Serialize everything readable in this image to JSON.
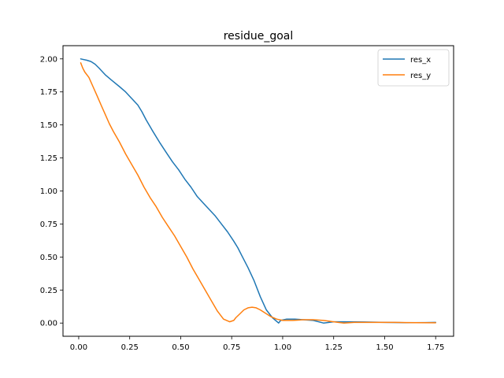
{
  "chart_data": {
    "type": "line",
    "title": "residue_goal",
    "xlabel": "",
    "ylabel": "",
    "xlim": [
      -0.077,
      1.838
    ],
    "ylim": [
      -0.1,
      2.1
    ],
    "xticks": [
      0.0,
      0.25,
      0.5,
      0.75,
      1.0,
      1.25,
      1.5,
      1.75
    ],
    "xtick_labels": [
      "0.00",
      "0.25",
      "0.50",
      "0.75",
      "1.00",
      "1.25",
      "1.50",
      "1.75"
    ],
    "yticks": [
      0.0,
      0.25,
      0.5,
      0.75,
      1.0,
      1.25,
      1.5,
      1.75,
      2.0
    ],
    "ytick_labels": [
      "0.00",
      "0.25",
      "0.50",
      "0.75",
      "1.00",
      "1.25",
      "1.50",
      "1.75",
      "2.00"
    ],
    "grid": false,
    "legend_position": "top-right",
    "series": [
      {
        "name": "res_x",
        "color": "#1f77b4",
        "x": [
          0.01,
          0.04,
          0.06,
          0.08,
          0.1,
          0.13,
          0.16,
          0.2,
          0.23,
          0.26,
          0.29,
          0.31,
          0.33,
          0.36,
          0.4,
          0.43,
          0.46,
          0.49,
          0.52,
          0.55,
          0.58,
          0.61,
          0.64,
          0.67,
          0.7,
          0.73,
          0.76,
          0.78,
          0.8,
          0.83,
          0.86,
          0.89,
          0.92,
          0.95,
          0.98,
          0.99,
          1.02,
          1.06,
          1.1,
          1.15,
          1.2,
          1.25,
          1.3,
          1.4,
          1.5,
          1.6,
          1.7,
          1.75
        ],
        "y": [
          2.0,
          1.99,
          1.98,
          1.96,
          1.93,
          1.88,
          1.84,
          1.79,
          1.75,
          1.7,
          1.65,
          1.6,
          1.54,
          1.46,
          1.36,
          1.29,
          1.22,
          1.16,
          1.09,
          1.03,
          0.96,
          0.91,
          0.86,
          0.81,
          0.75,
          0.69,
          0.62,
          0.57,
          0.51,
          0.42,
          0.32,
          0.2,
          0.1,
          0.04,
          0.0,
          0.02,
          0.03,
          0.03,
          0.025,
          0.02,
          0.0,
          0.01,
          0.01,
          0.008,
          0.005,
          0.003,
          0.004,
          0.005
        ]
      },
      {
        "name": "res_y",
        "color": "#ff7f0e",
        "x": [
          0.01,
          0.02,
          0.03,
          0.05,
          0.07,
          0.09,
          0.11,
          0.13,
          0.15,
          0.17,
          0.2,
          0.23,
          0.26,
          0.29,
          0.32,
          0.35,
          0.38,
          0.41,
          0.44,
          0.47,
          0.5,
          0.53,
          0.56,
          0.59,
          0.62,
          0.65,
          0.68,
          0.71,
          0.74,
          0.76,
          0.77,
          0.79,
          0.81,
          0.83,
          0.85,
          0.87,
          0.89,
          0.91,
          0.94,
          0.97,
          1.0,
          1.05,
          1.1,
          1.15,
          1.2,
          1.25,
          1.3,
          1.35,
          1.45,
          1.55,
          1.65,
          1.75
        ],
        "y": [
          1.97,
          1.93,
          1.9,
          1.86,
          1.79,
          1.72,
          1.65,
          1.58,
          1.51,
          1.45,
          1.37,
          1.28,
          1.2,
          1.12,
          1.03,
          0.95,
          0.88,
          0.8,
          0.73,
          0.66,
          0.58,
          0.5,
          0.41,
          0.33,
          0.25,
          0.17,
          0.09,
          0.03,
          0.01,
          0.02,
          0.04,
          0.07,
          0.1,
          0.115,
          0.12,
          0.115,
          0.1,
          0.08,
          0.05,
          0.03,
          0.02,
          0.02,
          0.025,
          0.025,
          0.02,
          0.01,
          0.0,
          0.005,
          0.005,
          0.005,
          0.003,
          0.002
        ]
      }
    ]
  }
}
